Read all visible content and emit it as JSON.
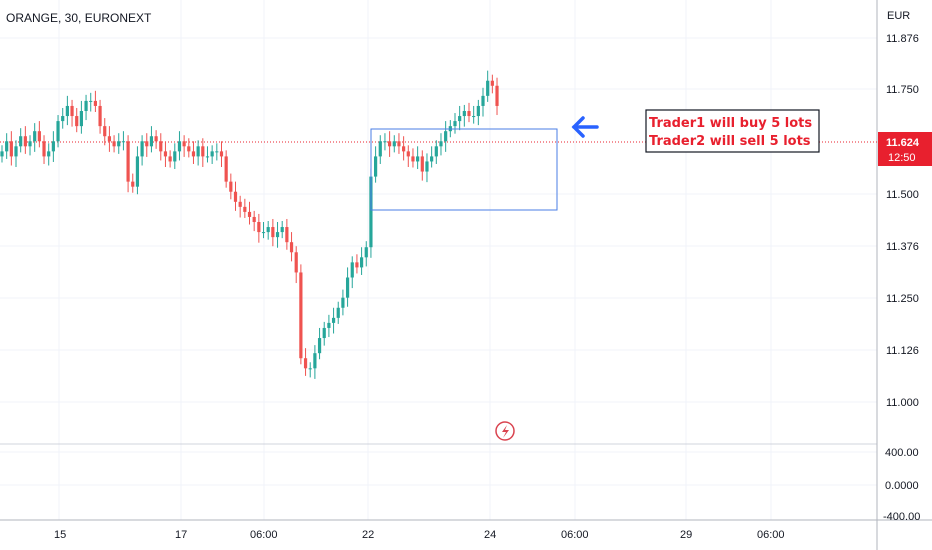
{
  "header": {
    "symbol": "ORANGE, 30, EURONEXT"
  },
  "price_axis": {
    "currency": "EUR"
  },
  "last_price": {
    "value": "11.624",
    "countdown": "12:50"
  },
  "annotation": {
    "lines": [
      "Trader1 will buy 5 lots",
      "Trader2 will sell 5 lots"
    ]
  },
  "colors": {
    "up": "#26a69a",
    "down": "#ef5350",
    "rect": "#4a7ee6",
    "arrow": "#2962ff",
    "price_line": "#e8202e",
    "grid": "#f0f3fa"
  },
  "chart_data": [
    {
      "type": "candlestick",
      "title": "ORANGE, 30, EURONEXT",
      "ylabel": "EUR",
      "ylim": [
        10.95,
        11.83
      ],
      "y_ticks": [
        "11.876",
        "11.750",
        "11.624",
        "11.500",
        "11.376",
        "11.250",
        "11.126",
        "11.000"
      ],
      "x_ticks": [
        "15",
        "17",
        "06:00",
        "22",
        "24",
        "06:00",
        "29",
        "06:00"
      ],
      "last": 11.624,
      "box": {
        "x_from": "22",
        "x_to": "24 06:00",
        "y_from": 11.465,
        "y_to": 11.658
      },
      "close_series": [
        11.53,
        11.55,
        11.52,
        11.54,
        11.56,
        11.54,
        11.55,
        11.57,
        11.55,
        11.52,
        11.53,
        11.55,
        11.59,
        11.6,
        11.62,
        11.6,
        11.58,
        11.61,
        11.63,
        11.63,
        11.62,
        11.58,
        11.56,
        11.55,
        11.54,
        11.55,
        11.55,
        11.47,
        11.46,
        11.52,
        11.55,
        11.54,
        11.56,
        11.55,
        11.53,
        11.52,
        11.51,
        11.53,
        11.55,
        11.54,
        11.53,
        11.52,
        11.54,
        11.52,
        11.52,
        11.53,
        11.53,
        11.52,
        11.47,
        11.45,
        11.43,
        11.42,
        11.41,
        11.4,
        11.39,
        11.37,
        11.37,
        11.38,
        11.36,
        11.37,
        11.38,
        11.35,
        11.33,
        11.29,
        11.12,
        11.1,
        11.1,
        11.13,
        11.16,
        11.18,
        11.19,
        11.2,
        11.22,
        11.24,
        11.28,
        11.31,
        11.3,
        11.32,
        11.34,
        11.48,
        11.52,
        11.55,
        11.55,
        11.54,
        11.55,
        11.54,
        11.53,
        11.52,
        11.51,
        11.52,
        11.49,
        11.51,
        11.52,
        11.54,
        11.55,
        11.57,
        11.58,
        11.59,
        11.6,
        11.61,
        11.6,
        11.6,
        11.62,
        11.64,
        11.67,
        11.66,
        11.62
      ],
      "volume_axis": [
        "400.00",
        "0.0000",
        "-400.00"
      ]
    }
  ]
}
